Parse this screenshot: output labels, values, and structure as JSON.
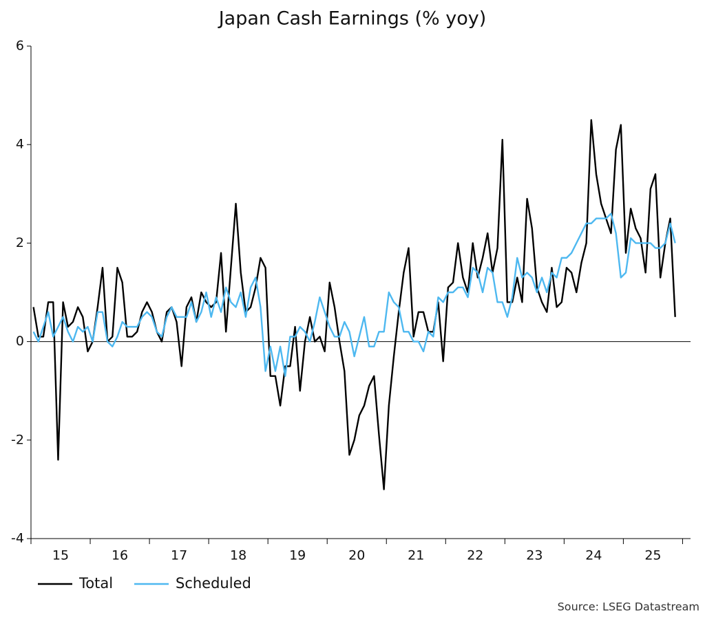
{
  "chart_data": {
    "type": "line",
    "title": "Japan Cash Earnings (% yoy)",
    "source": "Source: LSEG Datastream",
    "categories": [
      null,
      null,
      null,
      null,
      null,
      null,
      "15",
      null,
      null,
      null,
      null,
      null,
      null,
      null,
      null,
      null,
      null,
      null,
      "16",
      null,
      null,
      null,
      null,
      null,
      null,
      null,
      null,
      null,
      null,
      null,
      "17",
      null,
      null,
      null,
      null,
      null,
      null,
      null,
      null,
      null,
      null,
      null,
      "18",
      null,
      null,
      null,
      null,
      null,
      null,
      null,
      null,
      null,
      null,
      null,
      "19",
      null,
      null,
      null,
      null,
      null,
      null,
      null,
      null,
      null,
      null,
      null,
      "20",
      null,
      null,
      null,
      null,
      null,
      null,
      null,
      null,
      null,
      null,
      null,
      "21",
      null,
      null,
      null,
      null,
      null,
      null,
      null,
      null,
      null,
      null,
      null,
      "22",
      null,
      null,
      null,
      null,
      null,
      null,
      null,
      null,
      null,
      null,
      null,
      "23",
      null,
      null,
      null,
      null,
      null,
      null,
      null,
      null,
      null,
      null,
      null,
      "24",
      null,
      null,
      null,
      null,
      null,
      null,
      null,
      null,
      null,
      null,
      null,
      "25",
      null,
      null,
      null,
      null
    ],
    "series": [
      {
        "name": "Total",
        "color": "#000000",
        "values": [
          0.7,
          0.1,
          0.1,
          0.8,
          0.8,
          -2.4,
          0.8,
          0.3,
          0.4,
          0.7,
          0.5,
          -0.2,
          0.0,
          0.7,
          1.5,
          0.0,
          0.1,
          1.5,
          1.2,
          0.1,
          0.1,
          0.2,
          0.6,
          0.8,
          0.6,
          0.2,
          0.0,
          0.6,
          0.7,
          0.4,
          -0.5,
          0.7,
          0.9,
          0.4,
          1.0,
          0.8,
          0.7,
          0.8,
          1.8,
          0.2,
          1.5,
          2.8,
          1.4,
          0.6,
          0.7,
          1.1,
          1.7,
          1.5,
          -0.7,
          -0.7,
          -1.3,
          -0.5,
          -0.5,
          0.3,
          -1.0,
          0.0,
          0.5,
          0.0,
          0.1,
          -0.2,
          1.2,
          0.7,
          0.0,
          -0.6,
          -2.3,
          -2.0,
          -1.5,
          -1.3,
          -0.9,
          -0.7,
          -1.9,
          -3.0,
          -1.3,
          -0.3,
          0.6,
          1.4,
          1.9,
          0.1,
          0.6,
          0.6,
          0.2,
          0.2,
          0.8,
          -0.4,
          1.1,
          1.2,
          2.0,
          1.3,
          1.0,
          2.0,
          1.3,
          1.7,
          2.2,
          1.4,
          1.9,
          4.1,
          0.8,
          0.8,
          1.3,
          0.8,
          2.9,
          2.3,
          1.1,
          0.8,
          0.6,
          1.5,
          0.7,
          0.8,
          1.5,
          1.4,
          1.0,
          1.6,
          2.0,
          4.5,
          3.4,
          2.8,
          2.5,
          2.2,
          3.9,
          4.4,
          1.8,
          2.7,
          2.3,
          2.1,
          1.4,
          3.1,
          3.4,
          1.3,
          2.0,
          2.5,
          0.5
        ]
      },
      {
        "name": "Scheduled",
        "color": "#4db8f0",
        "values": [
          0.2,
          0.0,
          0.3,
          0.6,
          0.1,
          0.3,
          0.5,
          0.2,
          0.0,
          0.3,
          0.2,
          0.3,
          0.0,
          0.6,
          0.6,
          0.0,
          -0.1,
          0.1,
          0.4,
          0.3,
          0.3,
          0.3,
          0.5,
          0.6,
          0.5,
          0.2,
          0.1,
          0.5,
          0.7,
          0.5,
          0.5,
          0.5,
          0.8,
          0.4,
          0.6,
          1.0,
          0.5,
          0.9,
          0.6,
          1.1,
          0.8,
          0.7,
          1.0,
          0.5,
          1.1,
          1.3,
          0.7,
          -0.6,
          -0.1,
          -0.6,
          -0.1,
          -0.7,
          0.1,
          0.1,
          0.3,
          0.2,
          0.0,
          0.4,
          0.9,
          0.6,
          0.3,
          0.1,
          0.1,
          0.4,
          0.2,
          -0.3,
          0.1,
          0.5,
          -0.1,
          -0.1,
          0.2,
          0.2,
          1.0,
          0.8,
          0.7,
          0.2,
          0.2,
          0.0,
          0.0,
          -0.2,
          0.2,
          0.1,
          0.9,
          0.8,
          1.0,
          1.0,
          1.1,
          1.1,
          0.9,
          1.5,
          1.4,
          1.0,
          1.5,
          1.4,
          0.8,
          0.8,
          0.5,
          0.9,
          1.7,
          1.3,
          1.4,
          1.3,
          1.0,
          1.3,
          1.0,
          1.4,
          1.3,
          1.7,
          1.7,
          1.8,
          2.0,
          2.2,
          2.4,
          2.4,
          2.5,
          2.5,
          2.5,
          2.6,
          2.2,
          1.3,
          1.4,
          2.1,
          2.0,
          2.0,
          2.0,
          2.0,
          1.9,
          1.9,
          2.0,
          2.4,
          2.0
        ]
      }
    ],
    "ylim": [
      -4,
      6
    ],
    "yticks": [
      -4,
      -2,
      0,
      2,
      4,
      6
    ],
    "grid": false,
    "legend": "bottom-left"
  }
}
